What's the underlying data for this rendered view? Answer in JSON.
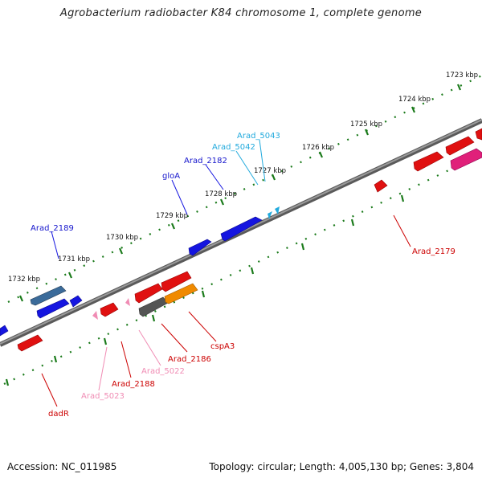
{
  "title": "Agrobacterium radiobacter K84 chromosome 1, complete genome",
  "footer": {
    "accession": "Accession: NC_011985",
    "summary": "Topology: circular; Length: 4,005,130 bp; Genes: 3,804"
  },
  "scale_labels": [
    "1723 kbp",
    "1724 kbp",
    "1725 kbp",
    "1726 kbp",
    "1727 kbp",
    "1728 kbp",
    "1729 kbp",
    "1730 kbp",
    "1731 kbp",
    "1732 kbp"
  ],
  "gene_labels": {
    "Arad_5043": "Arad_5043",
    "Arad_5042": "Arad_5042",
    "Arad_2182": "Arad_2182",
    "gloA": "gloA",
    "Arad_2189": "Arad_2189",
    "Arad_2179": "Arad_2179",
    "cspA3": "cspA3",
    "Arad_2186": "Arad_2186",
    "Arad_5022": "Arad_5022",
    "Arad_2188": "Arad_2188",
    "Arad_5023": "Arad_5023",
    "dadR": "dadR"
  },
  "colors": {
    "backbone": "#808080",
    "forward_tick": "#1a7a1a",
    "reverse_tick": "#1a7a1a",
    "blue_gene": "#1515e0",
    "red_gene": "#e01010",
    "cyan_label": "#22aadd",
    "pink_label": "#f08cb4",
    "magenta_gene": "#e0207a",
    "orange_gene": "#f08a00",
    "gray_gene": "#555555",
    "steel_gene": "#3b6b9a"
  }
}
